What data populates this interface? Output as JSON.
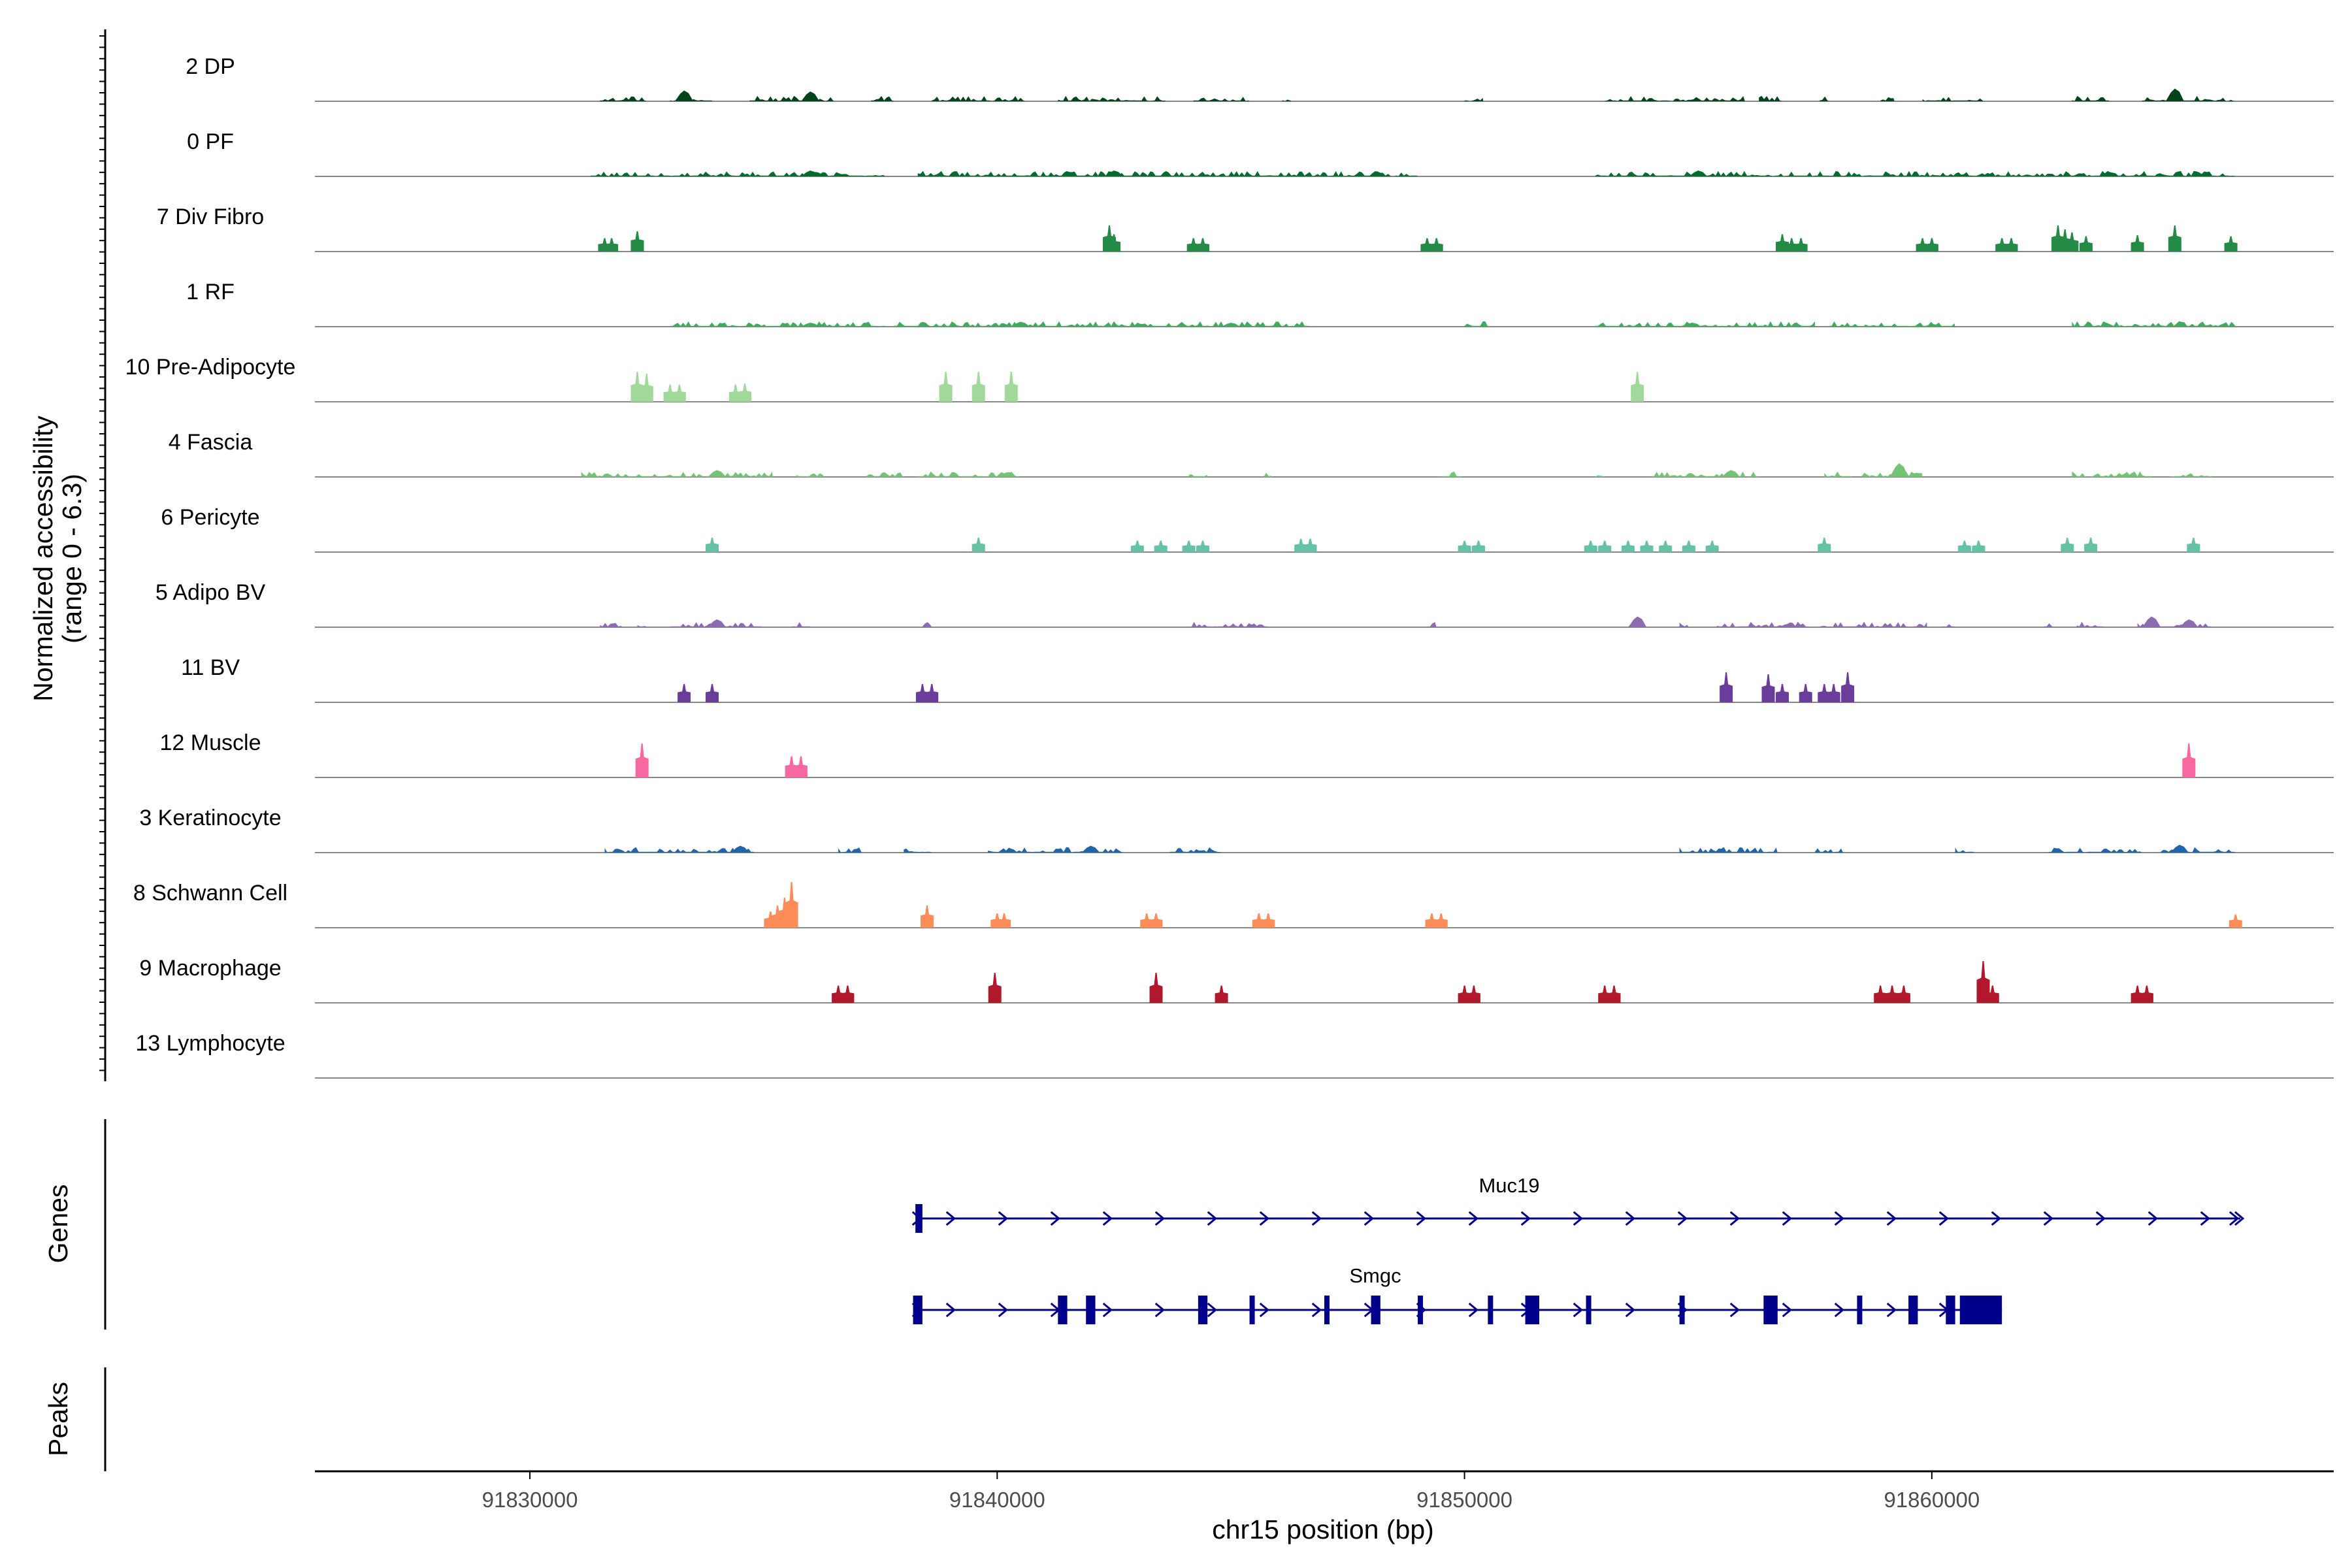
{
  "chart_data": {
    "type": "area",
    "title": "",
    "x_axis": {
      "label": "chr15 position (bp)",
      "range": [
        91825400,
        91868600
      ],
      "ticks": [
        91830000,
        91840000,
        91850000,
        91860000
      ],
      "tick_labels": [
        "91830000",
        "91840000",
        "91850000",
        "91860000"
      ]
    },
    "y_axis": {
      "label_line1": "Normalized accessibility",
      "label_line2": "(range 0 - 6.3)",
      "range": [
        0,
        6.3
      ]
    },
    "tracks": [
      {
        "name": "2 DP",
        "color": "#00441b",
        "style": "bumps",
        "regions": [
          [
            91831500,
            91832500
          ],
          [
            91833000,
            91833900
          ],
          [
            91834700,
            91836500
          ],
          [
            91837300,
            91837800
          ],
          [
            91838600,
            91840600
          ],
          [
            91841300,
            91843600
          ],
          [
            91844200,
            91845400
          ],
          [
            91846100,
            91846300
          ],
          [
            91850000,
            91850400
          ],
          [
            91853000,
            91856000
          ],
          [
            91856300,
            91856800
          ],
          [
            91857600,
            91857800
          ],
          [
            91858900,
            91859200
          ],
          [
            91859800,
            91861100
          ],
          [
            91863000,
            91863800
          ],
          [
            91864500,
            91866500
          ]
        ],
        "peaks": [
          [
            91833300,
            0.55
          ],
          [
            91836000,
            0.5
          ],
          [
            91865200,
            0.65
          ]
        ]
      },
      {
        "name": "0 PF",
        "color": "#006d2c",
        "style": "bumps",
        "regions": [
          [
            91831300,
            91837600
          ],
          [
            91838300,
            91849000
          ],
          [
            91852800,
            91866500
          ]
        ],
        "peaks": [
          [
            91836000,
            0.3
          ],
          [
            91842500,
            0.3
          ],
          [
            91855000,
            0.3
          ]
        ]
      },
      {
        "name": "7 Div Fibro",
        "color": "#238b45",
        "style": "blocks",
        "blocks": [
          [
            91831600,
            0.35
          ],
          [
            91831750,
            0.35
          ],
          [
            91832300,
            0.7
          ],
          [
            91842400,
            1.0
          ],
          [
            91842500,
            0.55
          ],
          [
            91844200,
            0.35
          ],
          [
            91844400,
            0.35
          ],
          [
            91849200,
            0.35
          ],
          [
            91849400,
            0.35
          ],
          [
            91856800,
            0.55
          ],
          [
            91857000,
            0.35
          ],
          [
            91857200,
            0.35
          ],
          [
            91859800,
            0.35
          ],
          [
            91860000,
            0.35
          ],
          [
            91861500,
            0.35
          ],
          [
            91861700,
            0.35
          ],
          [
            91862700,
            1.0
          ],
          [
            91862850,
            0.8
          ],
          [
            91863000,
            0.65
          ],
          [
            91863300,
            0.45
          ],
          [
            91864400,
            0.5
          ],
          [
            91865200,
            1.0
          ],
          [
            91866400,
            0.45
          ]
        ]
      },
      {
        "name": "1 RF",
        "color": "#41ab5d",
        "style": "bumps",
        "regions": [
          [
            91833000,
            91837600
          ],
          [
            91837800,
            91846700
          ],
          [
            91850000,
            91850500
          ],
          [
            91852800,
            91857500
          ],
          [
            91857800,
            91860500
          ],
          [
            91863000,
            91866500
          ]
        ],
        "peaks": [
          [
            91836000,
            0.2
          ],
          [
            91840500,
            0.25
          ],
          [
            91845000,
            0.2
          ]
        ]
      },
      {
        "name": "10 Pre-Adipocyte",
        "color": "#a1d99b",
        "style": "blocks",
        "blocks": [
          [
            91832300,
            1.2
          ],
          [
            91832500,
            1.1
          ],
          [
            91833000,
            0.55
          ],
          [
            91833200,
            0.55
          ],
          [
            91834400,
            0.55
          ],
          [
            91834600,
            0.6
          ],
          [
            91838900,
            1.2
          ],
          [
            91839600,
            1.2
          ],
          [
            91840300,
            1.2
          ],
          [
            91853700,
            1.2
          ]
        ]
      },
      {
        "name": "4 Fascia",
        "color": "#74c476",
        "style": "bumps",
        "regions": [
          [
            91831100,
            91835200
          ],
          [
            91835700,
            91836300
          ],
          [
            91837200,
            91838000
          ],
          [
            91838300,
            91840500
          ],
          [
            91844100,
            91844500
          ],
          [
            91845700,
            91845900
          ],
          [
            91849500,
            91850000
          ],
          [
            91852800,
            91853000
          ],
          [
            91854000,
            91856300
          ],
          [
            91857700,
            91858300
          ],
          [
            91858500,
            91859800
          ],
          [
            91863000,
            91864700
          ],
          [
            91865100,
            91866000
          ]
        ],
        "peaks": [
          [
            91834000,
            0.35
          ],
          [
            91855700,
            0.35
          ],
          [
            91859300,
            0.7
          ]
        ]
      },
      {
        "name": "6 Pericyte",
        "color": "#66c2a4",
        "style": "blocks",
        "blocks": [
          [
            91833900,
            0.4
          ],
          [
            91839600,
            0.4
          ],
          [
            91843000,
            0.25
          ],
          [
            91843500,
            0.25
          ],
          [
            91844100,
            0.25
          ],
          [
            91844400,
            0.25
          ],
          [
            91846500,
            0.35
          ],
          [
            91846700,
            0.35
          ],
          [
            91850000,
            0.25
          ],
          [
            91850300,
            0.25
          ],
          [
            91852700,
            0.25
          ],
          [
            91853000,
            0.25
          ],
          [
            91853500,
            0.25
          ],
          [
            91853900,
            0.25
          ],
          [
            91854300,
            0.25
          ],
          [
            91854800,
            0.25
          ],
          [
            91855300,
            0.25
          ],
          [
            91857700,
            0.4
          ],
          [
            91860700,
            0.25
          ],
          [
            91861000,
            0.25
          ],
          [
            91862900,
            0.4
          ],
          [
            91863400,
            0.4
          ],
          [
            91865600,
            0.4
          ]
        ]
      },
      {
        "name": "5 Adipo BV",
        "color": "#8c6bb1",
        "style": "bumps",
        "regions": [
          [
            91831500,
            91832000
          ],
          [
            91832300,
            91832500
          ],
          [
            91833000,
            91835000
          ],
          [
            91835600,
            91836000
          ],
          [
            91838400,
            91838600
          ],
          [
            91844100,
            91845800
          ],
          [
            91849200,
            91849400
          ],
          [
            91853600,
            91853800
          ],
          [
            91854600,
            91854800
          ],
          [
            91855400,
            91857400
          ],
          [
            91857600,
            91859900
          ],
          [
            91860200,
            91860500
          ],
          [
            91862400,
            91862600
          ],
          [
            91863100,
            91863700
          ],
          [
            91864400,
            91866000
          ]
        ],
        "peaks": [
          [
            91834000,
            0.4
          ],
          [
            91853700,
            0.55
          ],
          [
            91864700,
            0.55
          ],
          [
            91865500,
            0.4
          ]
        ]
      },
      {
        "name": "11 BV",
        "color": "#6a3d9a",
        "style": "blocks",
        "blocks": [
          [
            91833300,
            0.6
          ],
          [
            91833900,
            0.6
          ],
          [
            91838400,
            0.6
          ],
          [
            91838600,
            0.6
          ],
          [
            91855600,
            1.2
          ],
          [
            91856500,
            1.1
          ],
          [
            91856800,
            0.6
          ],
          [
            91857300,
            0.6
          ],
          [
            91857700,
            0.6
          ],
          [
            91857900,
            0.6
          ],
          [
            91858200,
            1.2
          ]
        ]
      },
      {
        "name": "12 Muscle",
        "color": "#f768a1",
        "style": "blocks",
        "blocks": [
          [
            91832400,
            1.4
          ],
          [
            91835600,
            0.75
          ],
          [
            91835800,
            0.75
          ],
          [
            91865500,
            1.4
          ]
        ]
      },
      {
        "name": "3 Keratinocyte",
        "color": "#2166ac",
        "style": "bumps",
        "regions": [
          [
            91831600,
            91834800
          ],
          [
            91836600,
            91837100
          ],
          [
            91838000,
            91838600
          ],
          [
            91839800,
            91842700
          ],
          [
            91843700,
            91844800
          ],
          [
            91854600,
            91856700
          ],
          [
            91857500,
            91858100
          ],
          [
            91860500,
            91860900
          ],
          [
            91862500,
            91864500
          ],
          [
            91864900,
            91866500
          ]
        ],
        "peaks": [
          [
            91834500,
            0.35
          ],
          [
            91842000,
            0.35
          ],
          [
            91865300,
            0.4
          ]
        ]
      },
      {
        "name": "8 Schwann Cell",
        "color": "#fc8d59",
        "style": "blocks",
        "blocks": [
          [
            91835150,
            0.5
          ],
          [
            91835300,
            0.8
          ],
          [
            91835450,
            1.2
          ],
          [
            91835600,
            2.0
          ],
          [
            91838500,
            0.8
          ],
          [
            91840000,
            0.4
          ],
          [
            91840150,
            0.4
          ],
          [
            91843200,
            0.4
          ],
          [
            91843400,
            0.4
          ],
          [
            91845600,
            0.4
          ],
          [
            91845800,
            0.4
          ],
          [
            91849300,
            0.4
          ],
          [
            91849500,
            0.4
          ],
          [
            91866500,
            0.35
          ]
        ]
      },
      {
        "name": "9 Macrophage",
        "color": "#b2182b",
        "style": "blocks",
        "blocks": [
          [
            91836600,
            0.55
          ],
          [
            91836800,
            0.55
          ],
          [
            91839950,
            1.2
          ],
          [
            91843400,
            1.2
          ],
          [
            91844800,
            0.55
          ],
          [
            91850000,
            0.55
          ],
          [
            91850200,
            0.55
          ],
          [
            91853000,
            0.55
          ],
          [
            91853200,
            0.55
          ],
          [
            91858900,
            0.55
          ],
          [
            91859150,
            0.55
          ],
          [
            91859400,
            0.55
          ],
          [
            91861100,
            1.8
          ],
          [
            91861300,
            0.55
          ],
          [
            91864400,
            0.55
          ],
          [
            91864600,
            0.55
          ]
        ]
      },
      {
        "name": "13 Lymphocyte",
        "color": "#444444",
        "style": "none"
      }
    ],
    "genes_label": "Genes",
    "peaks_label": "Peaks",
    "genes": [
      {
        "name": "Muc19",
        "start": 91838300,
        "end": 91866600,
        "exons": [
          [
            91838250,
            91838400
          ]
        ],
        "end_arrow": true
      },
      {
        "name": "Smgc",
        "start": 91838300,
        "end": 91861500,
        "exons": [
          [
            91838200,
            91838400
          ],
          [
            91841300,
            91841500
          ],
          [
            91841900,
            91842100
          ],
          [
            91844300,
            91844500
          ],
          [
            91845400,
            91845500
          ],
          [
            91847000,
            91847100
          ],
          [
            91848000,
            91848200
          ],
          [
            91849000,
            91849100
          ],
          [
            91850500,
            91850600
          ],
          [
            91851300,
            91851600
          ],
          [
            91852600,
            91852700
          ],
          [
            91854600,
            91854700
          ],
          [
            91856400,
            91856700
          ],
          [
            91858400,
            91858500
          ],
          [
            91859500,
            91859700
          ],
          [
            91860300,
            91860500
          ],
          [
            91860600,
            91861500
          ]
        ],
        "end_arrow": false
      }
    ],
    "gene_color": "#00008b"
  }
}
